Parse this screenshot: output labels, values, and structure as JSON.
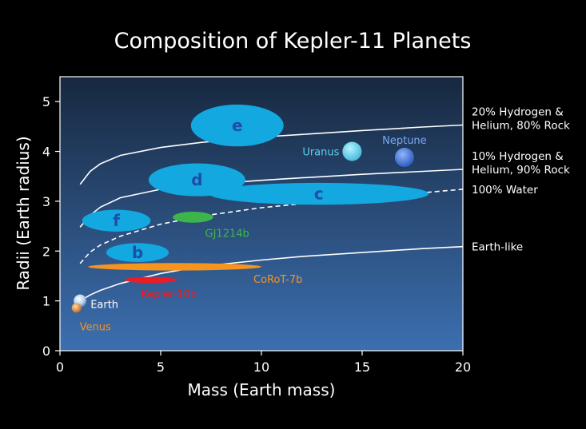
{
  "chart_data": {
    "type": "scatter",
    "title": "Composition of Kepler-11 Planets",
    "xlabel": "Mass (Earth mass)",
    "ylabel": "Radii (Earth radius)",
    "xlim": [
      0,
      20
    ],
    "ylim": [
      0,
      5.5
    ],
    "xticks": [
      0,
      5,
      10,
      15,
      20
    ],
    "yticks": [
      0,
      1,
      2,
      3,
      4,
      5
    ],
    "grid": false,
    "kepler11_planets": [
      {
        "label": "b",
        "mass": 4.3,
        "mass_range": [
          2.3,
          5.4
        ],
        "radius": 1.97,
        "radius_range": [
          1.78,
          2.16
        ]
      },
      {
        "label": "c",
        "mass": 13.5,
        "mass_range": [
          7.4,
          18.3
        ],
        "radius": 3.15,
        "radius_range": [
          2.93,
          3.37
        ]
      },
      {
        "label": "d",
        "mass": 6.9,
        "mass_range": [
          4.4,
          9.2
        ],
        "radius": 3.43,
        "radius_range": [
          3.1,
          3.76
        ]
      },
      {
        "label": "e",
        "mass": 8.7,
        "mass_range": [
          6.5,
          11.1
        ],
        "radius": 4.52,
        "radius_range": [
          4.1,
          4.94
        ]
      },
      {
        "label": "f",
        "mass": 2.8,
        "mass_range": [
          1.1,
          4.5
        ],
        "radius": 2.61,
        "radius_range": [
          2.39,
          2.83
        ]
      }
    ],
    "other_planets": [
      {
        "label": "GJ1214b",
        "mass": 6.5,
        "mass_range": [
          5.6,
          7.6
        ],
        "radius": 2.68,
        "radius_range": [
          2.57,
          2.79
        ],
        "color": "#3db54a"
      },
      {
        "label": "CoRoT-7b",
        "mass": 5.8,
        "mass_range": [
          1.4,
          10.0
        ],
        "radius": 1.68,
        "radius_range": [
          1.61,
          1.76
        ],
        "color": "#f7941d"
      },
      {
        "label": "Kepler-10b",
        "mass": 4.5,
        "mass_range": [
          3.2,
          5.8
        ],
        "radius": 1.42,
        "radius_range": [
          1.36,
          1.48
        ],
        "color": "#ed1c24"
      }
    ],
    "solar_system": [
      {
        "label": "Earth",
        "mass": 1.0,
        "radius": 1.0,
        "color": "#ffffff"
      },
      {
        "label": "Venus",
        "mass": 0.82,
        "radius": 0.86,
        "color": "#f7941d"
      },
      {
        "label": "Uranus",
        "mass": 14.5,
        "radius": 4.0,
        "color": "#5ed0f0"
      },
      {
        "label": "Neptune",
        "mass": 17.1,
        "radius": 3.88,
        "color": "#7da9f0"
      }
    ],
    "composition_curves": [
      {
        "label_lines": [
          "20% Hydrogen &",
          "Helium, 80% Rock"
        ],
        "style": "solid",
        "x": [
          1,
          1.5,
          2,
          3,
          5,
          7,
          10,
          12,
          15,
          18,
          20
        ],
        "y": [
          3.34,
          3.6,
          3.75,
          3.92,
          4.08,
          4.18,
          4.29,
          4.34,
          4.42,
          4.49,
          4.53
        ]
      },
      {
        "label_lines": [
          "10% Hydrogen &",
          "Helium, 90% Rock"
        ],
        "style": "solid",
        "x": [
          1,
          1.5,
          2,
          3,
          5,
          7,
          10,
          12,
          15,
          18,
          20
        ],
        "y": [
          2.48,
          2.72,
          2.88,
          3.07,
          3.24,
          3.33,
          3.42,
          3.47,
          3.54,
          3.6,
          3.64
        ]
      },
      {
        "label_lines": [
          "100% Water"
        ],
        "style": "dashed",
        "x": [
          1,
          1.5,
          2,
          3,
          5,
          7,
          10,
          12,
          15,
          18,
          20
        ],
        "y": [
          1.75,
          1.98,
          2.12,
          2.3,
          2.54,
          2.7,
          2.87,
          2.95,
          3.07,
          3.17,
          3.24
        ]
      },
      {
        "label_lines": [
          "Earth-like"
        ],
        "style": "solid",
        "x": [
          1,
          1.5,
          2,
          3,
          5,
          7,
          10,
          12,
          15,
          18,
          20
        ],
        "y": [
          1.0,
          1.12,
          1.21,
          1.35,
          1.55,
          1.69,
          1.82,
          1.89,
          1.97,
          2.05,
          2.09
        ]
      }
    ]
  },
  "colors": {
    "background": "#000000",
    "plot_top": "#17283f",
    "plot_bottom": "#3c6fb0",
    "kepler11_fill": "#13a8e0",
    "kepler11_letter": "#1d4fa8",
    "curve": "#ffffff"
  }
}
